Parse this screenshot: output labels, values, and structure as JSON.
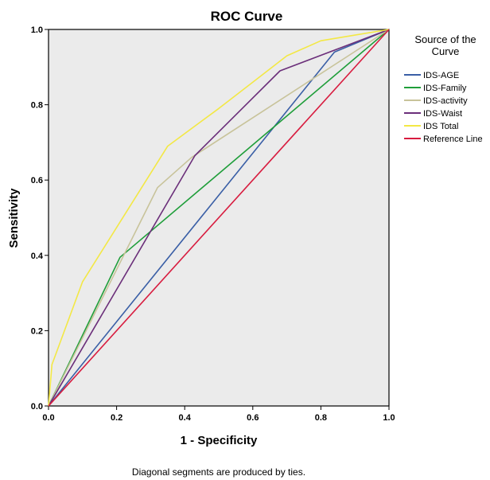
{
  "chart_data": {
    "type": "line",
    "title": "ROC Curve",
    "xlabel": "1 - Specificity",
    "ylabel": "Sensitivity",
    "xlim": [
      0,
      1
    ],
    "ylim": [
      0,
      1
    ],
    "xticks": [
      "0.0",
      "0.2",
      "0.4",
      "0.6",
      "0.8",
      "1.0"
    ],
    "yticks": [
      "0.0",
      "0.2",
      "0.4",
      "0.6",
      "0.8",
      "1.0"
    ],
    "grid": false,
    "plot_background": "#ebebeb",
    "legend": {
      "title": "Source of the Curve",
      "title_lines": [
        "Source of the",
        "Curve"
      ],
      "position": "right"
    },
    "series": [
      {
        "name": "IDS-AGE",
        "color": "#3a5fa6",
        "x": [
          0.0,
          0.84,
          1.0
        ],
        "y": [
          0.0,
          0.94,
          1.0
        ]
      },
      {
        "name": "IDS-Family",
        "color": "#1f9e3a",
        "x": [
          0.0,
          0.21,
          1.0
        ],
        "y": [
          0.0,
          0.395,
          1.0
        ]
      },
      {
        "name": "IDS-activity",
        "color": "#c8c39a",
        "x": [
          0.0,
          0.32,
          0.42,
          1.0
        ],
        "y": [
          0.0,
          0.58,
          0.66,
          1.0
        ]
      },
      {
        "name": "IDS-Waist",
        "color": "#6b2f7a",
        "x": [
          0.0,
          0.43,
          0.68,
          1.0
        ],
        "y": [
          0.0,
          0.665,
          0.89,
          1.0
        ]
      },
      {
        "name": "IDS Total",
        "color": "#f3e845",
        "x": [
          0.0,
          0.01,
          0.1,
          0.35,
          0.5,
          0.6,
          0.7,
          0.8,
          0.9,
          1.0
        ],
        "y": [
          0.0,
          0.11,
          0.33,
          0.69,
          0.79,
          0.86,
          0.93,
          0.97,
          0.985,
          1.0
        ]
      },
      {
        "name": "Reference Line",
        "color": "#d81c3f",
        "x": [
          0.0,
          1.0
        ],
        "y": [
          0.0,
          1.0
        ]
      }
    ]
  },
  "footnote": "Diagonal segments are produced by ties."
}
